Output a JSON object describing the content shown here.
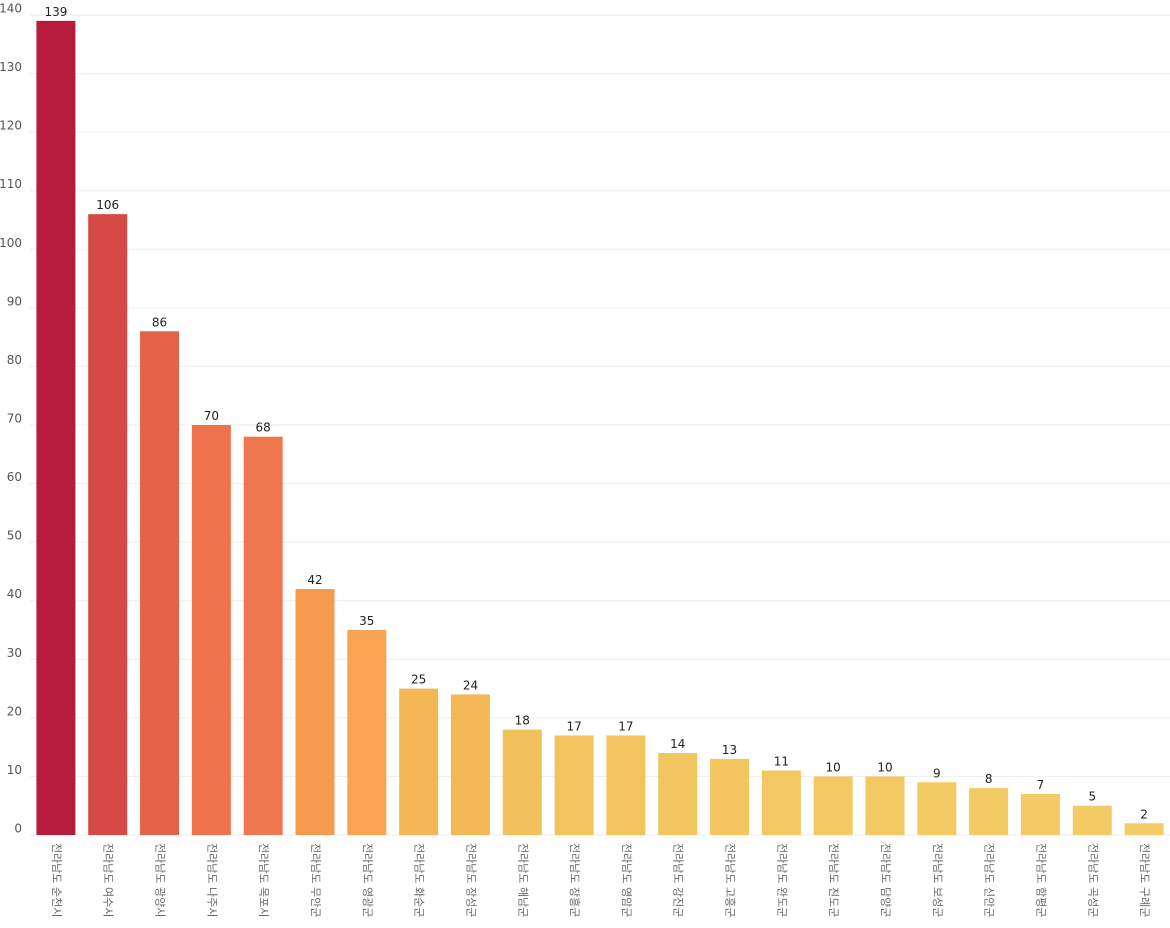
{
  "chart_data": {
    "type": "bar",
    "categories": [
      "전라남도 순천시",
      "전라남도 여수시",
      "전라남도 광양시",
      "전라남도 나주시",
      "전라남도 목포시",
      "전라남도 무안군",
      "전라남도 영광군",
      "전라남도 화순군",
      "전라남도 장성군",
      "전라남도 해남군",
      "전라남도 장흥군",
      "전라남도 영암군",
      "전라남도 강진군",
      "전라남도 고흥군",
      "전라남도 완도군",
      "전라남도 진도군",
      "전라남도 담양군",
      "전라남도 보성군",
      "전라남도 신안군",
      "전라남도 함평군",
      "전라남도 곡성군",
      "전라남도 구례군"
    ],
    "values": [
      139,
      106,
      86,
      70,
      68,
      42,
      35,
      25,
      24,
      18,
      17,
      17,
      14,
      13,
      11,
      10,
      10,
      9,
      8,
      7,
      5,
      2
    ],
    "colors": [
      "#b71c3e",
      "#d64a45",
      "#e5614a",
      "#ee744d",
      "#ef774e",
      "#f79a4f",
      "#f8a451",
      "#f5b657",
      "#f5b857",
      "#f3c15c",
      "#f3c35d",
      "#f3c35d",
      "#f3c55f",
      "#f3c660",
      "#f3c761",
      "#f3c862",
      "#f3c862",
      "#f3c962",
      "#f3ca63",
      "#f3ca63",
      "#f3cb64",
      "#f3cc65"
    ],
    "ylim": [
      0,
      140
    ],
    "yticks": [
      0,
      10,
      20,
      30,
      40,
      50,
      60,
      70,
      80,
      90,
      100,
      110,
      120,
      130,
      140
    ],
    "grid": true
  }
}
